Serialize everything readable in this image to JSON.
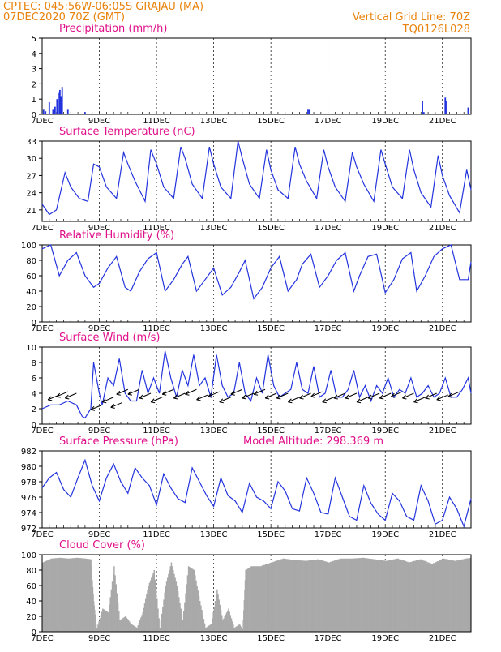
{
  "header": {
    "line1_left": "CPTEC:   045:56W-06:05S   GRAJAU (MA)",
    "line2_left": "07DEC2020 70Z (GMT)",
    "line1_right": "Vertical Grid Line: 70Z",
    "line2_right": "TQ0126L028"
  },
  "colors": {
    "header": "#e8820a",
    "title": "#e0108a",
    "series": "#2233dd",
    "cloud": "#a9a9a9"
  },
  "chart_data": [
    {
      "id": "precip",
      "type": "bar",
      "title": "Precipitation (mm/h)",
      "ylim": [
        0,
        5
      ],
      "yticks": [
        0,
        1,
        2,
        3,
        4,
        5
      ],
      "xlim": [
        0,
        15
      ],
      "xticks": [
        0,
        2,
        4,
        6,
        8,
        10,
        12,
        14
      ],
      "xticklabels": [
        "7DEC",
        "9DEC",
        "11DEC",
        "13DEC",
        "15DEC",
        "17DEC",
        "19DEC",
        "21DEC"
      ],
      "x": [
        0.05,
        0.12,
        0.25,
        0.38,
        0.45,
        0.52,
        0.6,
        0.62,
        0.66,
        0.7,
        0.9,
        1.5,
        9.3,
        9.35,
        13.3,
        13.35,
        14.1,
        14.15,
        14.9
      ],
      "values": [
        0.3,
        0.2,
        0.8,
        0.3,
        0.5,
        1.0,
        1.4,
        1.6,
        1.2,
        1.8,
        0.3,
        0.15,
        0.3,
        0.3,
        0.85,
        0.15,
        1.1,
        0.9,
        0.45
      ]
    },
    {
      "id": "temp",
      "type": "line",
      "title": "Surface Temperature (nC)",
      "ylim": [
        19,
        33
      ],
      "yticks": [
        21,
        24,
        27,
        30,
        33
      ],
      "xlim": [
        0,
        15
      ],
      "xticks": [
        0,
        2,
        4,
        6,
        8,
        10,
        12,
        14
      ],
      "xticklabels": [
        "7DEC",
        "9DEC",
        "11DEC",
        "13DEC",
        "15DEC",
        "17DEC",
        "19DEC",
        "21DEC"
      ],
      "x": [
        0,
        0.25,
        0.5,
        0.8,
        1.0,
        1.3,
        1.6,
        1.8,
        2.0,
        2.25,
        2.6,
        2.85,
        3.0,
        3.25,
        3.6,
        3.8,
        4.0,
        4.25,
        4.6,
        4.85,
        5.0,
        5.25,
        5.6,
        5.85,
        6.0,
        6.25,
        6.6,
        6.85,
        7.0,
        7.25,
        7.6,
        7.85,
        8.0,
        8.25,
        8.6,
        8.85,
        9.0,
        9.25,
        9.6,
        9.85,
        10.0,
        10.25,
        10.6,
        10.85,
        11.0,
        11.25,
        11.6,
        11.85,
        12.0,
        12.25,
        12.6,
        12.85,
        13.0,
        13.25,
        13.6,
        13.85,
        14.0,
        14.25,
        14.6,
        14.85,
        15.0
      ],
      "values": [
        22,
        20.2,
        21,
        27.5,
        25,
        23,
        22.5,
        29,
        28.5,
        25,
        23,
        31,
        29,
        26,
        22.5,
        31.5,
        29,
        25,
        23,
        32,
        30,
        25.5,
        23,
        32,
        29,
        25,
        23,
        33,
        30,
        25.5,
        23,
        31.5,
        28,
        24.5,
        23,
        32,
        29,
        26,
        23,
        31.5,
        28.5,
        25,
        22.5,
        31,
        28.5,
        25.5,
        22.5,
        31.5,
        29,
        25,
        23,
        31.5,
        28,
        24,
        21.5,
        30.5,
        27,
        23.5,
        20.5,
        28,
        24.5
      ]
    },
    {
      "id": "rh",
      "type": "line",
      "title": "Relative Humidity (%)",
      "ylim": [
        0,
        100
      ],
      "yticks": [
        0,
        20,
        40,
        60,
        80,
        100
      ],
      "xlim": [
        0,
        15
      ],
      "xticks": [
        0,
        2,
        4,
        6,
        8,
        10,
        12,
        14
      ],
      "xticklabels": [
        "7DEC",
        "9DEC",
        "11DEC",
        "13DEC",
        "15DEC",
        "17DEC",
        "19DEC",
        "21DEC"
      ],
      "x": [
        0,
        0.3,
        0.6,
        0.9,
        1.2,
        1.5,
        1.8,
        2.0,
        2.3,
        2.6,
        2.9,
        3.1,
        3.4,
        3.7,
        4.0,
        4.3,
        4.6,
        4.9,
        5.1,
        5.4,
        5.7,
        6.0,
        6.3,
        6.6,
        6.9,
        7.1,
        7.4,
        7.7,
        8.0,
        8.3,
        8.6,
        8.9,
        9.1,
        9.4,
        9.7,
        10.0,
        10.3,
        10.6,
        10.9,
        11.1,
        11.4,
        11.7,
        12.0,
        12.3,
        12.6,
        12.9,
        13.1,
        13.4,
        13.7,
        14.0,
        14.3,
        14.6,
        14.9,
        15.0
      ],
      "values": [
        95,
        100,
        60,
        80,
        90,
        60,
        45,
        50,
        70,
        85,
        45,
        40,
        65,
        82,
        90,
        40,
        55,
        75,
        85,
        40,
        55,
        70,
        35,
        45,
        65,
        80,
        30,
        45,
        70,
        85,
        40,
        55,
        75,
        88,
        45,
        60,
        80,
        90,
        40,
        60,
        85,
        88,
        38,
        55,
        82,
        90,
        40,
        60,
        85,
        95,
        100,
        55,
        55,
        78
      ]
    },
    {
      "id": "wind",
      "type": "line",
      "title": "Surface Wind (m/s)",
      "ylim": [
        0,
        10
      ],
      "yticks": [
        0,
        2,
        4,
        6,
        8,
        10
      ],
      "xlim": [
        0,
        15
      ],
      "xticks": [
        0,
        2,
        4,
        6,
        8,
        10,
        12,
        14
      ],
      "xticklabels": [
        "7DEC",
        "9DEC",
        "11DEC",
        "13DEC",
        "15DEC",
        "17DEC",
        "19DEC",
        "21DEC"
      ],
      "x": [
        0,
        0.3,
        0.6,
        0.9,
        1.2,
        1.4,
        1.5,
        1.7,
        1.8,
        2.0,
        2.1,
        2.3,
        2.5,
        2.7,
        2.9,
        3.1,
        3.3,
        3.5,
        3.7,
        3.9,
        4.1,
        4.3,
        4.5,
        4.7,
        4.9,
        5.1,
        5.3,
        5.5,
        5.7,
        5.9,
        6.1,
        6.3,
        6.5,
        6.7,
        6.9,
        7.1,
        7.3,
        7.5,
        7.7,
        7.9,
        8.1,
        8.3,
        8.5,
        8.7,
        8.9,
        9.1,
        9.3,
        9.5,
        9.7,
        9.9,
        10.1,
        10.3,
        10.5,
        10.7,
        10.9,
        11.1,
        11.3,
        11.5,
        11.7,
        11.9,
        12.1,
        12.3,
        12.5,
        12.7,
        12.9,
        13.1,
        13.3,
        13.5,
        13.7,
        13.9,
        14.1,
        14.3,
        14.5,
        14.7,
        14.9,
        15.0
      ],
      "values": [
        2,
        2.5,
        2.5,
        3,
        2.5,
        1,
        0.8,
        2,
        8,
        4,
        2.5,
        6,
        5,
        8.5,
        4,
        3,
        3,
        7,
        4,
        6,
        4,
        9.5,
        6,
        3.5,
        7,
        5,
        9,
        5,
        6,
        3.5,
        9,
        5,
        3.5,
        4,
        8,
        4,
        3,
        6,
        4,
        9,
        5,
        3.5,
        4,
        4.5,
        8,
        4.5,
        4,
        7.5,
        3.5,
        4,
        7,
        3.5,
        3.5,
        4.5,
        7,
        3.5,
        5,
        3,
        5,
        4,
        6,
        3.5,
        4.5,
        4,
        6,
        3.5,
        4,
        5,
        3.5,
        4,
        6,
        3.5,
        3.5,
        4.5,
        6,
        4
      ],
      "arrows_x": [
        0.6,
        0.9,
        1.2,
        2.1,
        2.5,
        2.8,
        3.0,
        3.4,
        3.8,
        4.2,
        4.6,
        5.0,
        5.4,
        5.8,
        6.2,
        6.6,
        7.0,
        7.4,
        7.8,
        8.2,
        8.6,
        9.0,
        9.4,
        9.8,
        10.2,
        10.6,
        11.0,
        11.4,
        11.8,
        12.2,
        12.6,
        13.0,
        13.4,
        13.8,
        14.2,
        14.6
      ],
      "arrows_y": [
        3.8,
        4.2,
        4.0,
        2.5,
        3.5,
        2.8,
        4.5,
        4.5,
        4.0,
        3.5,
        4.5,
        4.0,
        4.5,
        3.8,
        4.2,
        3.5,
        4.5,
        4.0,
        4.5,
        4.0,
        4.0,
        3.5,
        4.0,
        4.2,
        3.5,
        4.0,
        4.0,
        3.5,
        4.0,
        4.0,
        4.2,
        4.0,
        3.5,
        4.0,
        3.8,
        4.2
      ]
    },
    {
      "id": "pressure",
      "type": "line",
      "title": "Surface Pressure (hPa)",
      "subtitle": "Model Altitude: 298.369 m",
      "ylim": [
        972,
        982
      ],
      "yticks": [
        972,
        974,
        976,
        978,
        980,
        982
      ],
      "xlim": [
        0,
        15
      ],
      "xticks": [
        0,
        2,
        4,
        6,
        8,
        10,
        12,
        14
      ],
      "xticklabels": [
        "7DEC",
        "9DEC",
        "11DEC",
        "13DEC",
        "15DEC",
        "17DEC",
        "19DEC",
        "21DEC"
      ],
      "x": [
        0,
        0.25,
        0.5,
        0.75,
        1.0,
        1.25,
        1.5,
        1.75,
        2.0,
        2.25,
        2.5,
        2.75,
        3.0,
        3.25,
        3.5,
        3.75,
        4.0,
        4.25,
        4.5,
        4.75,
        5.0,
        5.25,
        5.5,
        5.75,
        6.0,
        6.25,
        6.5,
        6.75,
        7.0,
        7.25,
        7.5,
        7.75,
        8.0,
        8.25,
        8.5,
        8.75,
        9.0,
        9.25,
        9.5,
        9.75,
        10.0,
        10.25,
        10.5,
        10.75,
        11.0,
        11.25,
        11.5,
        11.75,
        12.0,
        12.25,
        12.5,
        12.75,
        13.0,
        13.25,
        13.5,
        13.75,
        14.0,
        14.25,
        14.5,
        14.75,
        15.0
      ],
      "values": [
        977.2,
        978.5,
        979.2,
        977.0,
        976.0,
        978.5,
        980.8,
        977.5,
        975.5,
        978.5,
        980.3,
        978.0,
        976.5,
        979.8,
        978.5,
        977.5,
        975.0,
        979.0,
        977.2,
        975.8,
        975.3,
        979.8,
        978.0,
        976.2,
        974.8,
        978.5,
        976.2,
        975.5,
        974.0,
        977.8,
        976.0,
        975.5,
        974.5,
        978.0,
        976.8,
        974.5,
        974.2,
        978.5,
        976.5,
        974.0,
        973.8,
        978.5,
        976.0,
        973.5,
        973.0,
        977.5,
        975.2,
        973.8,
        973.0,
        976.5,
        975.5,
        973.5,
        973.0,
        977.5,
        975.5,
        972.5,
        973.0,
        976.0,
        974.5,
        972.2,
        975.8
      ]
    },
    {
      "id": "cloud",
      "type": "area",
      "title": "Cloud Cover (%)",
      "ylim": [
        0,
        100
      ],
      "yticks": [
        0,
        20,
        40,
        60,
        80,
        100
      ],
      "xlim": [
        0,
        15
      ],
      "xticks": [
        0,
        2,
        4,
        6,
        8,
        10,
        12,
        14
      ],
      "xticklabels": [
        "7DEC",
        "9DEC",
        "11DEC",
        "13DEC",
        "15DEC",
        "17DEC",
        "19DEC",
        "21DEC"
      ],
      "x": [
        0,
        0.3,
        0.6,
        0.9,
        1.2,
        1.5,
        1.7,
        1.8,
        1.9,
        2.1,
        2.3,
        2.5,
        2.7,
        2.9,
        3.1,
        3.3,
        3.5,
        3.7,
        3.9,
        4.1,
        4.3,
        4.5,
        4.7,
        4.9,
        5.1,
        5.3,
        5.5,
        5.7,
        5.9,
        6.1,
        6.3,
        6.5,
        6.7,
        6.9,
        7.0,
        7.1,
        7.3,
        7.6,
        8.0,
        8.4,
        8.8,
        9.2,
        9.6,
        10.0,
        10.4,
        10.8,
        11.2,
        11.6,
        12.0,
        12.4,
        12.8,
        13.2,
        13.6,
        14.0,
        14.4,
        14.8,
        15.0
      ],
      "values": [
        90,
        95,
        96,
        95,
        96,
        95,
        94,
        40,
        5,
        30,
        25,
        85,
        15,
        20,
        10,
        5,
        25,
        60,
        80,
        5,
        60,
        90,
        60,
        15,
        85,
        80,
        40,
        5,
        10,
        55,
        15,
        30,
        5,
        10,
        2,
        80,
        85,
        85,
        90,
        95,
        93,
        92,
        94,
        90,
        95,
        95,
        96,
        94,
        92,
        95,
        90,
        94,
        88,
        95,
        92,
        95,
        96
      ]
    }
  ]
}
